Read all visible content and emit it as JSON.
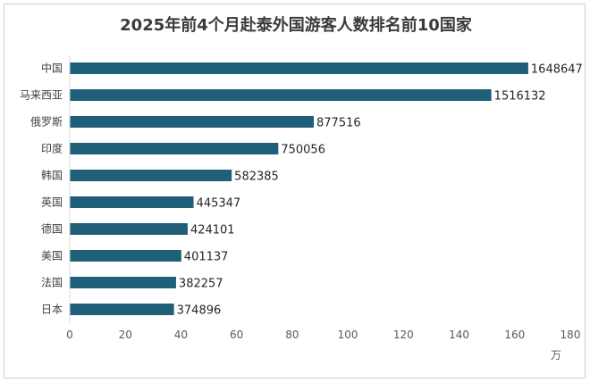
{
  "chart_data": {
    "type": "bar",
    "orientation": "horizontal",
    "title": "2025年前4个月赴泰外国游客人数排名前10国家",
    "categories": [
      "中国",
      "马来西亚",
      "俄罗斯",
      "印度",
      "韩国",
      "英国",
      "德国",
      "美国",
      "法国",
      "日本"
    ],
    "values": [
      1648647,
      1516132,
      877516,
      750056,
      582385,
      445347,
      424101,
      401137,
      382257,
      374896
    ],
    "data_labels": [
      "1648647",
      "1516132",
      "877516",
      "750056",
      "582385",
      "445347",
      "424101",
      "401137",
      "382257",
      "374896"
    ],
    "x_ticks": [
      "0",
      "20",
      "40",
      "60",
      "80",
      "100",
      "120",
      "140",
      "160",
      "180"
    ],
    "x_unit": "万",
    "xlim": [
      0,
      1800000
    ],
    "grid": false,
    "bar_color": "#1f5f7a"
  }
}
